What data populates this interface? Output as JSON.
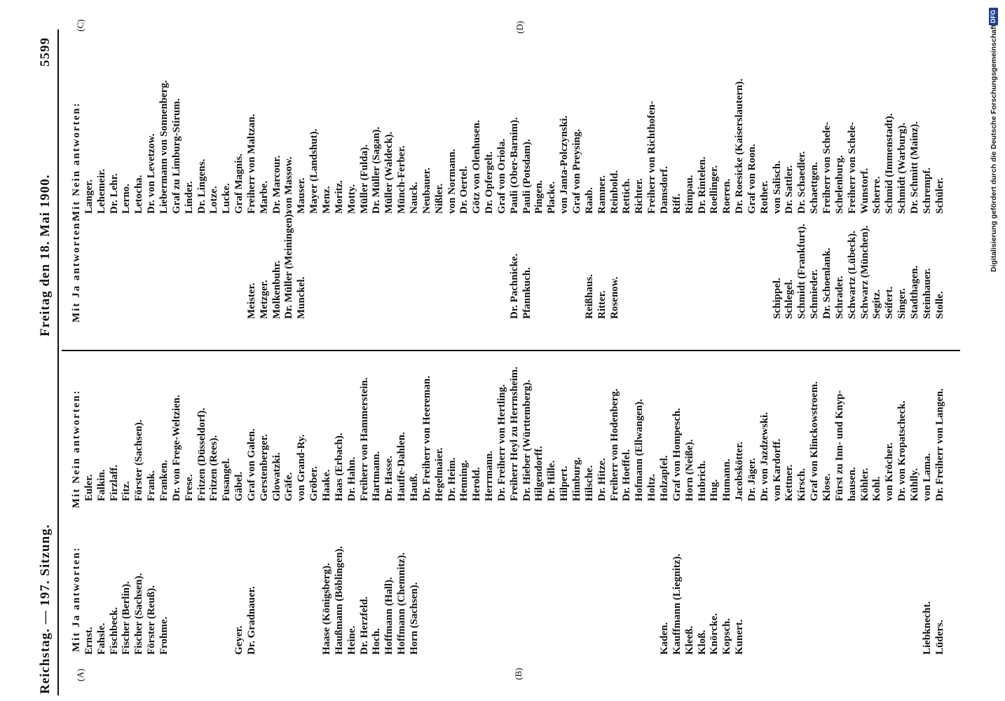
{
  "header": {
    "left": "Reichstag. — 197. Sitzung.",
    "center": "Freitag den 18. Mai 1900.",
    "page": "5599"
  },
  "markers": [
    "(A)",
    "(B)",
    "(C)",
    "(D)"
  ],
  "columns": [
    {
      "heading": "Mit Ja antworten:",
      "blocks": [
        [
          "Ernst.",
          "Fahsle.",
          "Fischbeck.",
          "Fischer (Berlin).",
          "Fischer (Sachsen).",
          "Förster (Reuß).",
          "Frohme."
        ],
        [
          "Geyer.",
          "Dr. Gradnauer."
        ],
        [
          "Haase (Königsberg).",
          "Haußmann (Böblingen).",
          "Heine.",
          "Dr. Herzfeld.",
          "Hoch.",
          "Hoffmann (Hall).",
          "Hoffmann (Chemnitz).",
          "Horn (Sachsen)."
        ],
        [
          "Kaden.",
          "Kauffmann (Liegnitz).",
          "Kleeß.",
          "Kloß.",
          "Knörcke.",
          "Kopsch.",
          "Kunert."
        ],
        [
          "Liebknecht.",
          "Lüders."
        ]
      ]
    },
    {
      "heading": "Mit Nein antworten:",
      "blocks": [
        [
          "Euler.",
          "Falkin.",
          "Firzlaff.",
          "Fitz.",
          "Förster (Sachsen).",
          "Frank.",
          "Franken.",
          "Dr. von Frege-Weltzien.",
          "Frese.",
          "Fritzen (Düsseldorf).",
          "Fritzen (Rees).",
          "Fusangel.",
          "Gäbel.",
          "Graf von Galen.",
          "Gerstenberger.",
          "Glowatzki.",
          "Gräfe.",
          "von Grand-Ry.",
          "Gröber.",
          "Haake.",
          "Haas (Erbach).",
          "Dr. Hahn.",
          "Freiherr von Hammerstein.",
          "Hartmann.",
          "Dr. Hasse.",
          "Hauffe-Dahlen.",
          "Hauß.",
          "Dr. Freiherr von Heereman.",
          "Hegelmaier.",
          "Dr. Heim.",
          "Henning.",
          "Herold.",
          "Herrmann.",
          "Dr. Freiherr von Hertling.",
          "Freiherr Heyl zu Herrnsheim.",
          "Dr. Hieber (Württemberg).",
          "Hilgendorff.",
          "Dr. Hille.",
          "Hilpert.",
          "Himburg.",
          "Hilsche.",
          "Dr. Hitze.",
          "Freiherr von Hodenberg.",
          "Dr. Hoeffel.",
          "Hofmann (Ellwangen).",
          "Holtz.",
          "Holzapfel.",
          "Graf von Hompesch.",
          "Horn (Neiße).",
          "Hubrich.",
          "Hug.",
          "Humann.",
          "Jacobskötter.",
          "Dr. Jäger.",
          "Dr. von Jazdzewski.",
          "von Kardorff.",
          "Kettner.",
          "Kirsch.",
          "Graf von Klinckowstroem.",
          "Klose.",
          "Fürst zu Inn- und Knyp-",
          "hausen.",
          "Köhler.",
          "Kohl.",
          "von Kröcher.",
          "Dr. von Kropatscheck.",
          "Kühlly.",
          "von Lama.",
          "Dr. Freiherr von Langen."
        ]
      ]
    },
    {
      "heading": "Mit Ja antworten:",
      "blocks": [
        [
          "Meister.",
          "Metzger.",
          "Molkenbuhr.",
          "Dr. Müller (Meiningen).",
          "Munckel."
        ],
        [
          "Dr. Pachnicke.",
          "Pfannkuch."
        ],
        [
          "Reißhaus.",
          "Ritter.",
          "Rosenow."
        ],
        [
          "Schippel.",
          "Schlegel.",
          "Schmidt (Frankfurt).",
          "Schmieder.",
          "Dr. Schoenlank.",
          "Schrader.",
          "Schwartz (Lübeck).",
          "Schwarz (München).",
          "Segitz.",
          "Seifert.",
          "Singer.",
          "Stadthagen.",
          "Steinhauer.",
          "Stolle."
        ]
      ]
    },
    {
      "heading": "Mit Nein antworten:",
      "blocks": [
        [
          "Langer.",
          "Lehemeir.",
          "Dr. Lehr.",
          "Lerno.",
          "Letocha.",
          "Dr. von Levetzow.",
          "Liebermann von Sonnenberg.",
          "Graf zu Limburg-Stirum.",
          "Linder.",
          "Dr. Lingens.",
          "Lotze.",
          "Lucke.",
          "Graf Magnis.",
          "Freiherr von Maltzan.",
          "Marbe.",
          "Dr. Marcour.",
          "von Massow.",
          "Mauser.",
          "Mayer (Landshut).",
          "Menz.",
          "Moritz.",
          "Motty.",
          "Müller (Fulda).",
          "Dr. Müller (Sagan).",
          "Müller (Waldeck).",
          "Münch-Ferber.",
          "Nauck.",
          "Neubauer.",
          "Nißler.",
          "von Normann.",
          "Dr. Oertel.",
          "Götz von Olenhusen.",
          "Dr. Opfergelt.",
          "Graf von Oriola.",
          "Pauli (Ober-Barnim).",
          "Pauli (Potsdam).",
          "Pingen.",
          "Placke.",
          "von Janta-Polczynski.",
          "Graf von Preysing.",
          "Raab.",
          "Ramner.",
          "Reinbold.",
          "Rettich.",
          "Richter.",
          "Freiherr von Richthofen-",
          "Damsdorf.",
          "Riff.",
          "Rimpau.",
          "Dr. Rintelen.",
          "Roellinger.",
          "Roeren.",
          "Dr. Roesicke (Kaiserslautern).",
          "Graf von Roon.",
          "Rother.",
          "von Salisch.",
          "Dr. Sattler.",
          "Dr. Schaedler.",
          "Schaettgen.",
          "Freiherr von Schele-",
          "Schelenburg.",
          "Freiherr von Schele-",
          "Wunstorf.",
          "Scherre.",
          "Schmid (Immenstadt).",
          "Schmidt (Warburg).",
          "Dr. Schmitt (Mainz).",
          "Schrempf.",
          "Schüler."
        ]
      ]
    }
  ],
  "footer": {
    "credit": "Digitalisierung gefördert durch die Deutsche Forschungsgemeinschaft",
    "logo": "DFG"
  }
}
